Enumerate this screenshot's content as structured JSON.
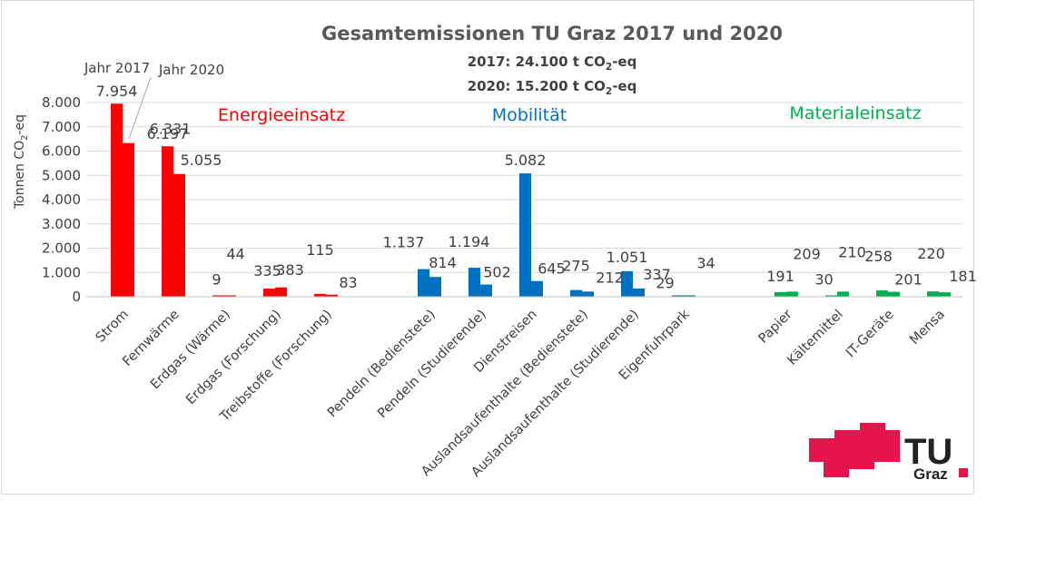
{
  "chart_data": {
    "type": "bar",
    "title": "Gesamtemissionen TU Graz 2017 und 2020",
    "subtitle_lines": [
      {
        "prefix": "2017: 24.100 t CO",
        "sub": "2",
        "suffix": "-eq"
      },
      {
        "prefix": "2020: 15.200 t CO",
        "sub": "2",
        "suffix": "-eq"
      }
    ],
    "ylabel": {
      "prefix": "Tonnen CO",
      "sub": "2",
      "suffix": "-eq"
    },
    "xlabel": "",
    "ylim": [
      0,
      8000
    ],
    "yticks": [
      0,
      1000,
      2000,
      3000,
      4000,
      5000,
      6000,
      7000,
      8000
    ],
    "ytick_labels": [
      "0",
      "1.000",
      "2.000",
      "3.000",
      "4.000",
      "5.000",
      "6.000",
      "7.000",
      "8.000"
    ],
    "grid": true,
    "legend": "none",
    "series": [
      {
        "name": "Jahr 2017"
      },
      {
        "name": "Jahr 2020"
      }
    ],
    "series_callouts": [
      "Jahr 2017",
      "Jahr 2020"
    ],
    "groups": [
      {
        "name": "Energieeinsatz",
        "color": "#ff0000",
        "categories": [
          {
            "label": "Strom",
            "v2017": 7954,
            "v2020": 6331,
            "l2017": "7.954",
            "l2020": "6.331"
          },
          {
            "label": "Fernwärme",
            "v2017": 6197,
            "v2020": 5055,
            "l2017": "6.197",
            "l2020": "5.055"
          },
          {
            "label": "Erdgas (Wärme)",
            "v2017": 9,
            "v2020": 44,
            "l2017": "9",
            "l2020": "44"
          },
          {
            "label": "Erdgas (Forschung)",
            "v2017": 335,
            "v2020": 383,
            "l2017": "335",
            "l2020": "383"
          },
          {
            "label": "Treibstoffe (Forschung)",
            "v2017": 115,
            "v2020": 83,
            "l2017": "115",
            "l2020": "83"
          }
        ]
      },
      {
        "name": "Mobilität",
        "color": "#0070c0",
        "categories": [
          {
            "label": "Pendeln (Bedienstete)",
            "v2017": 1137,
            "v2020": 814,
            "l2017": "1.137",
            "l2020": "814"
          },
          {
            "label": "Pendeln (Studierende)",
            "v2017": 1194,
            "v2020": 502,
            "l2017": "1.194",
            "l2020": "502"
          },
          {
            "label": "Dienstreisen",
            "v2017": 5082,
            "v2020": 645,
            "l2017": "5.082",
            "l2020": "645"
          },
          {
            "label": "Auslandsaufenthalte (Bedienstete)",
            "v2017": 275,
            "v2020": 212,
            "l2017": "275",
            "l2020": "212"
          },
          {
            "label": "Auslandsaufenthalte (Studierende)",
            "v2017": 1051,
            "v2020": 337,
            "l2017": "1.051",
            "l2020": "337"
          },
          {
            "label": "Eigenfuhrpark",
            "v2017": 29,
            "v2020": 34,
            "l2017": "29",
            "l2020": "34"
          }
        ]
      },
      {
        "name": "Materialeinsatz",
        "color": "#00b050",
        "categories": [
          {
            "label": "Papier",
            "v2017": 191,
            "v2020": 209,
            "l2017": "191",
            "l2020": "209"
          },
          {
            "label": "Kältemittel",
            "v2017": 30,
            "v2020": 210,
            "l2017": "30",
            "l2020": "210"
          },
          {
            "label": "IT-Geräte",
            "v2017": 258,
            "v2020": 201,
            "l2017": "258",
            "l2020": "201"
          },
          {
            "label": "Mensa",
            "v2017": 220,
            "v2020": 181,
            "l2017": "220",
            "l2020": "181"
          }
        ]
      }
    ]
  },
  "logo": {
    "text_top": "TU",
    "text_bottom": "Graz",
    "color": "#e4154b"
  }
}
